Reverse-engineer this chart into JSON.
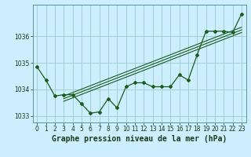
{
  "title": "Graphe pression niveau de la mer (hPa)",
  "background_color": "#cceeff",
  "grid_color": "#99cccc",
  "line_color": "#1a5c1a",
  "x_data": [
    0,
    1,
    2,
    3,
    4,
    5,
    6,
    7,
    8,
    9,
    10,
    11,
    12,
    13,
    14,
    15,
    16,
    17,
    18,
    19,
    20,
    21,
    22,
    23
  ],
  "y_main": [
    1034.85,
    1034.35,
    1033.75,
    1033.8,
    1033.8,
    1033.45,
    1033.1,
    1033.15,
    1033.65,
    1033.3,
    1034.1,
    1034.25,
    1034.25,
    1034.1,
    1034.1,
    1034.1,
    1034.55,
    1034.35,
    1035.3,
    1036.2,
    1036.2,
    1036.2,
    1036.15,
    1036.85
  ],
  "trend_x": [
    3,
    4,
    5,
    6,
    7,
    8,
    9,
    10,
    11,
    12,
    13,
    14,
    15,
    16,
    17,
    18,
    19,
    20,
    21,
    22,
    23
  ],
  "y_trend1": [
    1033.75,
    1033.88,
    1034.01,
    1034.14,
    1034.27,
    1034.4,
    1034.53,
    1034.66,
    1034.79,
    1034.92,
    1035.05,
    1035.18,
    1035.31,
    1035.44,
    1035.57,
    1035.7,
    1035.83,
    1035.96,
    1036.09,
    1036.22,
    1036.35
  ],
  "y_trend2": [
    1033.65,
    1033.78,
    1033.91,
    1034.04,
    1034.17,
    1034.3,
    1034.43,
    1034.56,
    1034.69,
    1034.82,
    1034.95,
    1035.08,
    1035.21,
    1035.34,
    1035.47,
    1035.6,
    1035.73,
    1035.86,
    1035.99,
    1036.12,
    1036.25
  ],
  "y_trend3": [
    1033.55,
    1033.68,
    1033.81,
    1033.94,
    1034.07,
    1034.2,
    1034.33,
    1034.46,
    1034.59,
    1034.72,
    1034.85,
    1034.98,
    1035.11,
    1035.24,
    1035.37,
    1035.5,
    1035.63,
    1035.76,
    1035.89,
    1036.02,
    1036.15
  ],
  "ylim": [
    1032.75,
    1037.2
  ],
  "yticks": [
    1033,
    1034,
    1035,
    1036
  ],
  "xlim": [
    -0.5,
    23.5
  ],
  "tick_fontsize": 5.5,
  "title_fontsize": 7.0
}
